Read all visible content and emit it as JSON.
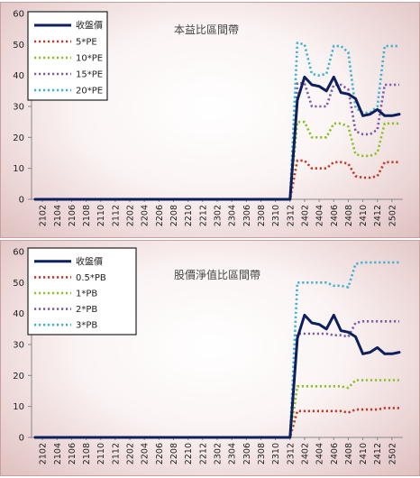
{
  "chart_data": [
    {
      "type": "line",
      "title": "本益比區間帶",
      "ylim": [
        0,
        60
      ],
      "yticks": [
        0,
        10,
        20,
        30,
        40,
        50,
        60
      ],
      "grid": false,
      "legend_position": "top-left",
      "x": [
        "2101",
        "2102",
        "2103",
        "2104",
        "2105",
        "2106",
        "2107",
        "2108",
        "2109",
        "2110",
        "2111",
        "2112",
        "2201",
        "2202",
        "2203",
        "2204",
        "2205",
        "2206",
        "2207",
        "2208",
        "2209",
        "2210",
        "2211",
        "2212",
        "2301",
        "2302",
        "2303",
        "2304",
        "2305",
        "2306",
        "2307",
        "2308",
        "2309",
        "2310",
        "2311",
        "2312",
        "2401",
        "2402",
        "2403",
        "2404",
        "2405",
        "2406",
        "2407",
        "2408",
        "2409",
        "2410",
        "2411",
        "2412",
        "2501",
        "2502",
        "2503"
      ],
      "xtick_labels": [
        "2102",
        "2104",
        "2106",
        "2108",
        "2110",
        "2112",
        "2202",
        "2204",
        "2206",
        "2208",
        "2210",
        "2212",
        "2302",
        "2304",
        "2306",
        "2308",
        "2310",
        "2312",
        "2402",
        "2404",
        "2406",
        "2408",
        "2410",
        "2412",
        "2502"
      ],
      "series": [
        {
          "name": "收盤價",
          "color": "#0d1f5c",
          "style": "solid",
          "values": [
            0,
            0,
            0,
            0,
            0,
            0,
            0,
            0,
            0,
            0,
            0,
            0,
            0,
            0,
            0,
            0,
            0,
            0,
            0,
            0,
            0,
            0,
            0,
            0,
            0,
            0,
            0,
            0,
            0,
            0,
            0,
            0,
            0,
            0,
            0,
            0,
            32,
            39.5,
            37,
            36.5,
            35,
            39.5,
            34.5,
            34,
            32.5,
            27,
            27.5,
            29,
            27,
            27,
            27.5
          ]
        },
        {
          "name": "5*PE",
          "color": "#c0392b",
          "style": "dotted",
          "values": [
            0,
            0,
            0,
            0,
            0,
            0,
            0,
            0,
            0,
            0,
            0,
            0,
            0,
            0,
            0,
            0,
            0,
            0,
            0,
            0,
            0,
            0,
            0,
            0,
            0,
            0,
            0,
            0,
            0,
            0,
            0,
            0,
            0,
            0,
            0,
            0,
            12.5,
            12.5,
            10,
            10,
            10,
            12,
            12,
            11.5,
            7.5,
            7,
            7,
            7.5,
            12,
            12,
            12
          ]
        },
        {
          "name": "10*PE",
          "color": "#8cbf2a",
          "style": "dotted",
          "values": [
            0,
            0,
            0,
            0,
            0,
            0,
            0,
            0,
            0,
            0,
            0,
            0,
            0,
            0,
            0,
            0,
            0,
            0,
            0,
            0,
            0,
            0,
            0,
            0,
            0,
            0,
            0,
            0,
            0,
            0,
            0,
            0,
            0,
            0,
            0,
            0,
            25,
            25,
            20,
            20,
            20,
            24.5,
            24.5,
            23.5,
            14.5,
            14,
            14,
            15,
            24.5,
            24.5,
            24.5
          ]
        },
        {
          "name": "15*PE",
          "color": "#7d5ba6",
          "style": "dotted",
          "values": [
            0,
            0,
            0,
            0,
            0,
            0,
            0,
            0,
            0,
            0,
            0,
            0,
            0,
            0,
            0,
            0,
            0,
            0,
            0,
            0,
            0,
            0,
            0,
            0,
            0,
            0,
            0,
            0,
            0,
            0,
            0,
            0,
            0,
            0,
            0,
            0,
            37.5,
            37.5,
            30,
            30,
            30,
            37,
            37,
            35.5,
            22,
            21,
            21,
            22.5,
            37,
            37,
            37
          ]
        },
        {
          "name": "20*PE",
          "color": "#3fb0d0",
          "style": "dotted",
          "values": [
            0,
            0,
            0,
            0,
            0,
            0,
            0,
            0,
            0,
            0,
            0,
            0,
            0,
            0,
            0,
            0,
            0,
            0,
            0,
            0,
            0,
            0,
            0,
            0,
            0,
            0,
            0,
            0,
            0,
            0,
            0,
            0,
            0,
            0,
            0,
            0,
            50.5,
            50,
            40.5,
            40,
            40.5,
            49.5,
            49.5,
            47.5,
            29.5,
            28,
            28,
            30,
            49.5,
            49.5,
            49.5
          ]
        }
      ]
    },
    {
      "type": "line",
      "title": "股價淨值比區間帶",
      "ylim": [
        0,
        60
      ],
      "yticks": [
        0,
        10,
        20,
        30,
        40,
        50,
        60
      ],
      "grid": false,
      "legend_position": "top-left",
      "x": [
        "2101",
        "2102",
        "2103",
        "2104",
        "2105",
        "2106",
        "2107",
        "2108",
        "2109",
        "2110",
        "2111",
        "2112",
        "2201",
        "2202",
        "2203",
        "2204",
        "2205",
        "2206",
        "2207",
        "2208",
        "2209",
        "2210",
        "2211",
        "2212",
        "2301",
        "2302",
        "2303",
        "2304",
        "2305",
        "2306",
        "2307",
        "2308",
        "2309",
        "2310",
        "2311",
        "2312",
        "2401",
        "2402",
        "2403",
        "2404",
        "2405",
        "2406",
        "2407",
        "2408",
        "2409",
        "2410",
        "2411",
        "2412",
        "2501",
        "2502",
        "2503"
      ],
      "xtick_labels": [
        "2102",
        "2104",
        "2106",
        "2108",
        "2110",
        "2112",
        "2202",
        "2204",
        "2206",
        "2208",
        "2210",
        "2212",
        "2302",
        "2304",
        "2306",
        "2308",
        "2310",
        "2312",
        "2402",
        "2404",
        "2406",
        "2408",
        "2410",
        "2412",
        "2502"
      ],
      "series": [
        {
          "name": "收盤價",
          "color": "#0d1f5c",
          "style": "solid",
          "values": [
            0,
            0,
            0,
            0,
            0,
            0,
            0,
            0,
            0,
            0,
            0,
            0,
            0,
            0,
            0,
            0,
            0,
            0,
            0,
            0,
            0,
            0,
            0,
            0,
            0,
            0,
            0,
            0,
            0,
            0,
            0,
            0,
            0,
            0,
            0,
            0,
            32,
            39.5,
            37,
            36.5,
            35,
            39.5,
            34.5,
            34,
            32.5,
            27,
            27.5,
            29,
            27,
            27,
            27.5
          ]
        },
        {
          "name": "0.5*PB",
          "color": "#c0392b",
          "style": "dotted",
          "values": [
            0,
            0,
            0,
            0,
            0,
            0,
            0,
            0,
            0,
            0,
            0,
            0,
            0,
            0,
            0,
            0,
            0,
            0,
            0,
            0,
            0,
            0,
            0,
            0,
            0,
            0,
            0,
            0,
            0,
            0,
            0,
            0,
            0,
            0,
            0,
            0,
            8.5,
            8.5,
            8.5,
            8.5,
            8.5,
            8.5,
            8.5,
            8,
            9,
            9,
            9,
            9,
            9.5,
            9.5,
            9.5
          ]
        },
        {
          "name": "1*PB",
          "color": "#8cbf2a",
          "style": "dotted",
          "values": [
            0,
            0,
            0,
            0,
            0,
            0,
            0,
            0,
            0,
            0,
            0,
            0,
            0,
            0,
            0,
            0,
            0,
            0,
            0,
            0,
            0,
            0,
            0,
            0,
            0,
            0,
            0,
            0,
            0,
            0,
            0,
            0,
            0,
            0,
            0,
            0,
            16.5,
            16.5,
            16.5,
            16.5,
            16.5,
            16.5,
            16.5,
            16,
            18.5,
            18.5,
            18.5,
            18.5,
            18.5,
            18.5,
            18.5
          ]
        },
        {
          "name": "2*PB",
          "color": "#7d5ba6",
          "style": "dotted",
          "values": [
            0,
            0,
            0,
            0,
            0,
            0,
            0,
            0,
            0,
            0,
            0,
            0,
            0,
            0,
            0,
            0,
            0,
            0,
            0,
            0,
            0,
            0,
            0,
            0,
            0,
            0,
            0,
            0,
            0,
            0,
            0,
            0,
            0,
            0,
            0,
            0,
            33.5,
            33.5,
            33.5,
            33.5,
            33.5,
            33,
            33,
            32.5,
            37,
            37.5,
            37.5,
            37.5,
            37.5,
            37.5,
            37.5
          ]
        },
        {
          "name": "3*PB",
          "color": "#3fb0d0",
          "style": "dotted",
          "values": [
            0,
            0,
            0,
            0,
            0,
            0,
            0,
            0,
            0,
            0,
            0,
            0,
            0,
            0,
            0,
            0,
            0,
            0,
            0,
            0,
            0,
            0,
            0,
            0,
            0,
            0,
            0,
            0,
            0,
            0,
            0,
            0,
            0,
            0,
            0,
            0,
            50,
            50,
            50,
            50,
            50,
            49,
            49,
            48.5,
            56,
            56.5,
            56.5,
            56.5,
            56.5,
            56.5,
            56.5
          ]
        }
      ]
    }
  ]
}
